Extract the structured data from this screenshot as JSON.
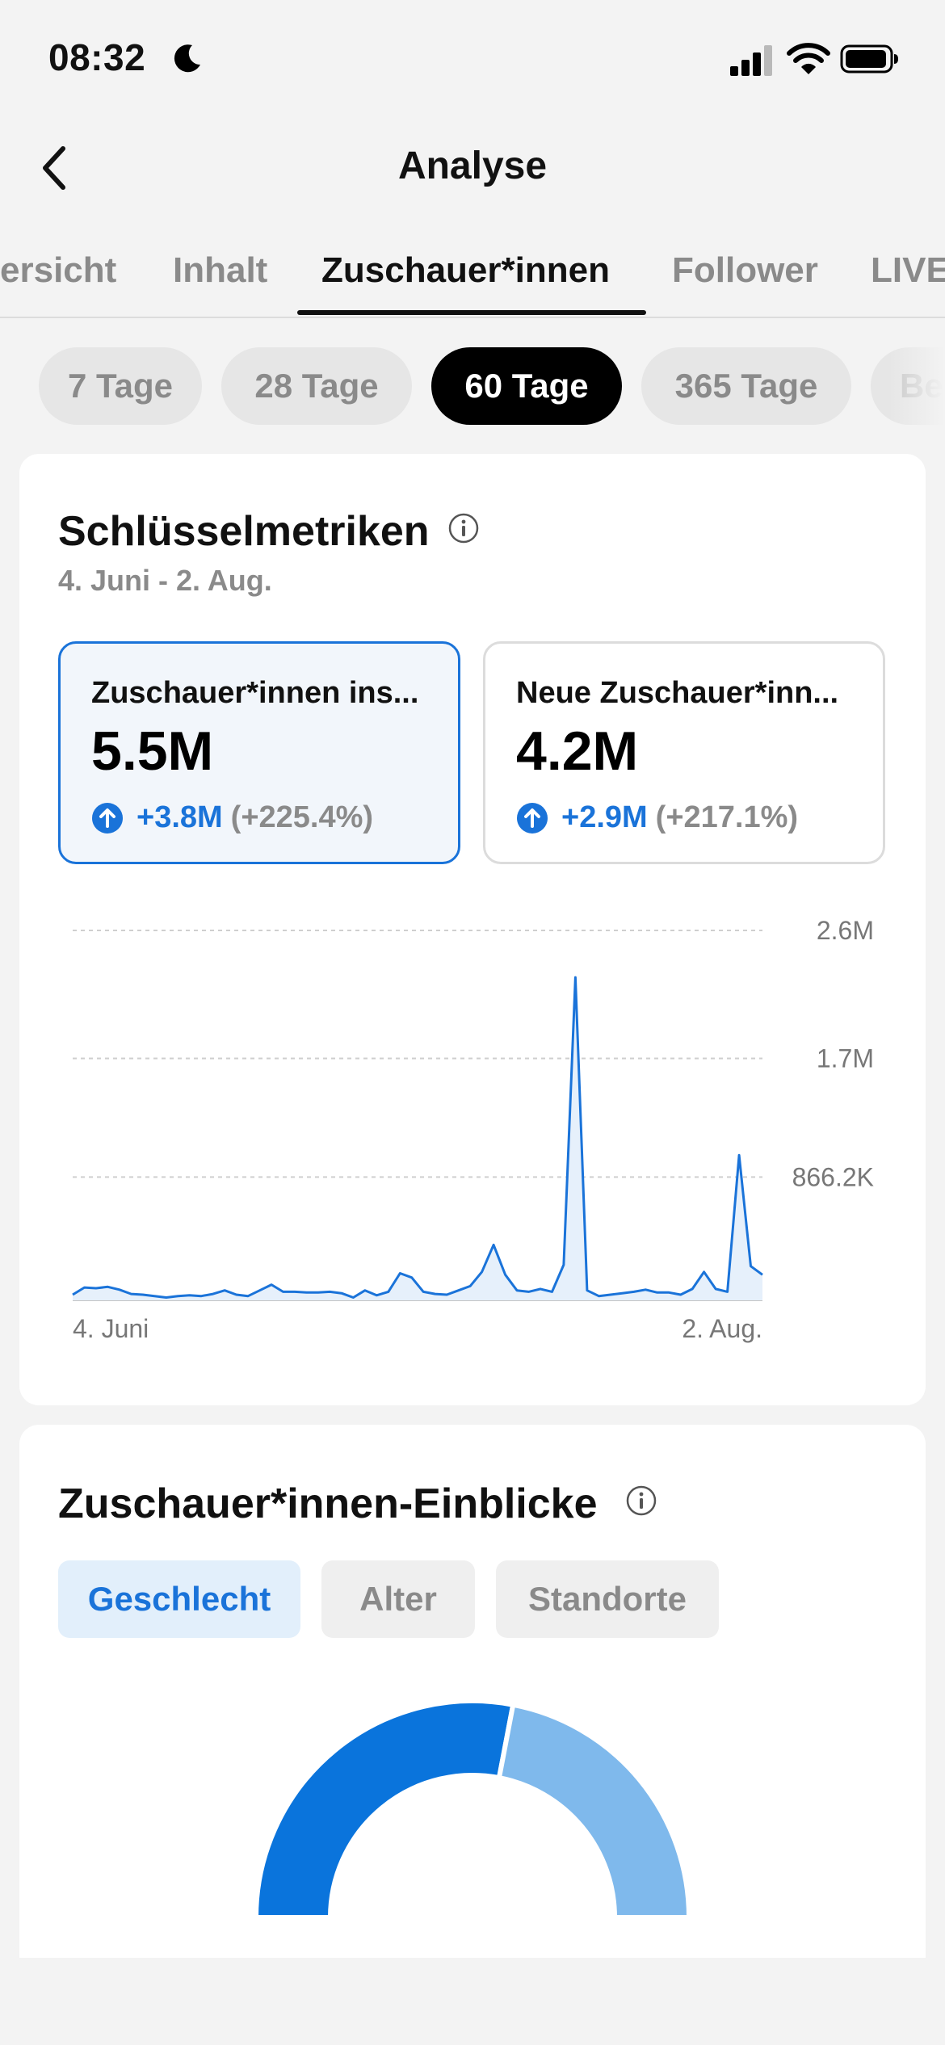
{
  "status_bar": {
    "time": "08:32",
    "icons": [
      "moon-icon",
      "signal-icon",
      "wifi-icon",
      "battery-icon"
    ]
  },
  "header": {
    "title": "Analyse",
    "back_icon": "chevron-left-icon"
  },
  "tabs": [
    {
      "label": "Übersicht",
      "visible_text": "ersicht",
      "active": false
    },
    {
      "label": "Inhalt",
      "active": false
    },
    {
      "label": "Zuschauer*innen",
      "active": true
    },
    {
      "label": "Follower",
      "active": false
    },
    {
      "label": "LIVE",
      "visible_text": "LIVE",
      "active": false
    }
  ],
  "periods": [
    {
      "label": "7 Tage",
      "active": false
    },
    {
      "label": "28 Tage",
      "active": false
    },
    {
      "label": "60 Tage",
      "active": true
    },
    {
      "label": "365 Tage",
      "active": false
    },
    {
      "label": "Be",
      "active": false
    }
  ],
  "key_metrics": {
    "title": "Schlüsselmetriken",
    "date_range": "4. Juni - 2. Aug.",
    "metrics": [
      {
        "label": "Zuschauer*innen ins...",
        "value": "5.5M",
        "delta": "+3.8M",
        "pct": "(+225.4%)",
        "selected": true
      },
      {
        "label": "Neue Zuschauer*inn...",
        "value": "4.2M",
        "delta": "+2.9M",
        "pct": "(+217.1%)",
        "selected": false
      }
    ]
  },
  "chart_data": {
    "type": "line",
    "title": "",
    "xlabel": "",
    "ylabel": "",
    "x_labels": [
      "4. Juni",
      "2. Aug."
    ],
    "y_ticks": [
      "2.6M",
      "1.7M",
      "866.2K"
    ],
    "y_tick_values": [
      2600000,
      1700000,
      866200
    ],
    "ylim": [
      0,
      2600000
    ],
    "grid": true,
    "color": "#1a73d9",
    "series": [
      {
        "values": [
          40000,
          90000,
          85000,
          95000,
          75000,
          45000,
          40000,
          30000,
          20000,
          30000,
          35000,
          30000,
          45000,
          70000,
          40000,
          30000,
          70000,
          110000,
          60000,
          60000,
          55000,
          55000,
          60000,
          50000,
          20000,
          70000,
          35000,
          60000,
          190000,
          160000,
          60000,
          45000,
          40000,
          70000,
          100000,
          200000,
          390000,
          180000,
          70000,
          60000,
          80000,
          60000,
          250000,
          2270000,
          70000,
          30000,
          40000,
          50000,
          60000,
          75000,
          55000,
          55000,
          40000,
          80000,
          200000,
          80000,
          60000,
          1020000,
          240000,
          180000
        ]
      }
    ]
  },
  "insights": {
    "title": "Zuschauer*innen-Einblicke",
    "tabs": [
      {
        "label": "Geschlecht",
        "active": true
      },
      {
        "label": "Alter",
        "active": false
      },
      {
        "label": "Standorte",
        "active": false
      }
    ],
    "donut": {
      "segments": [
        {
          "fraction": 0.56,
          "color": "#0a74dc"
        },
        {
          "fraction": 0.44,
          "color": "#7fb9ec"
        }
      ]
    }
  }
}
